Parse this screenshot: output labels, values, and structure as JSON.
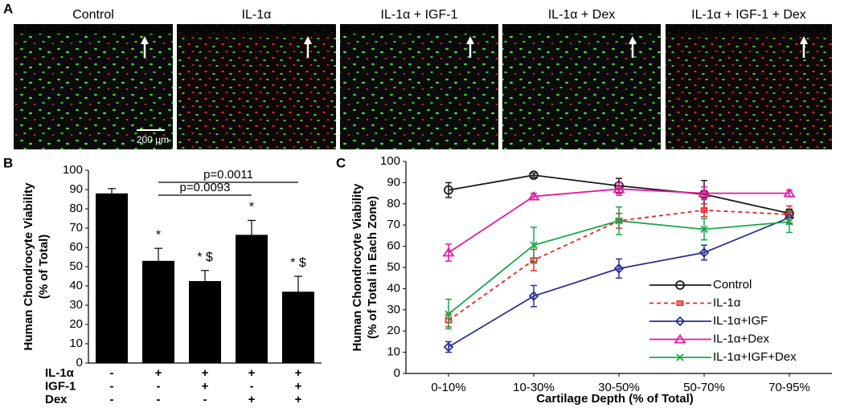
{
  "panel_labels": [
    "A",
    "B",
    "C"
  ],
  "panel_a": {
    "titles": [
      "Control",
      "IL-1α",
      "IL-1α + IGF-1",
      "IL-1α + Dex",
      "IL-1α + IGF-1 + Dex"
    ],
    "scale_bar": "200 μm"
  },
  "chart_data": [
    {
      "type": "bar",
      "ylabel": [
        "Human Chondrocyte Viability",
        "(% of Total)"
      ],
      "values": [
        88,
        53,
        42.5,
        66.5,
        37
      ],
      "errors": [
        2.5,
        6.5,
        5.5,
        7.5,
        8
      ],
      "markers": [
        null,
        "*",
        "* $",
        "*",
        "* $"
      ],
      "color": "#000000",
      "ylim": [
        0,
        100
      ],
      "yticks": [
        0,
        10,
        20,
        30,
        40,
        50,
        60,
        70,
        80,
        90,
        100
      ],
      "comparisons": [
        {
          "label": "p=0.0011",
          "categories": [
            1,
            4
          ]
        },
        {
          "label": "p=0.0093",
          "categories": [
            1,
            3
          ]
        }
      ],
      "treatment_table": [
        {
          "name": "IL-1α",
          "signs": [
            "-",
            "+",
            "+",
            "+",
            "+"
          ]
        },
        {
          "name": "IGF-1",
          "signs": [
            "-",
            "-",
            "+",
            "-",
            "+"
          ]
        },
        {
          "name": "Dex",
          "signs": [
            "-",
            "-",
            "-",
            "+",
            "+"
          ]
        }
      ]
    },
    {
      "type": "line",
      "ylabel": [
        "Human Chondrocyte Viability",
        "(% of Total in Each Zone)"
      ],
      "xlabel": "Cartilage Depth (% of Total)",
      "categories": [
        "0-10%",
        "10-30%",
        "30-50%",
        "50-70%",
        "70-95%"
      ],
      "ylim": [
        0,
        100
      ],
      "yticks": [
        0,
        10,
        20,
        30,
        40,
        50,
        60,
        70,
        80,
        90,
        100
      ],
      "legend": "lower right",
      "series": [
        {
          "name": "Control",
          "color": "#1a1a1a",
          "marker": "circle",
          "line_style": "solid",
          "values": [
            86.5,
            93.5,
            88.5,
            84.5,
            75.5
          ],
          "errors": [
            3.5,
            1,
            3.5,
            6.5,
            2
          ]
        },
        {
          "name": "IL-1α",
          "color": "#e8262a",
          "marker": "square",
          "line_style": "dashed",
          "values": [
            25,
            53.5,
            72,
            77,
            75
          ],
          "errors": [
            3,
            5,
            3.5,
            3,
            4
          ]
        },
        {
          "name": "IL-1α+IGF",
          "color": "#2b2f8f",
          "marker": "diamond",
          "line_style": "solid",
          "values": [
            12.5,
            36.5,
            49.5,
            57,
            73.5
          ],
          "errors": [
            2.5,
            5,
            4.5,
            3.5,
            3
          ]
        },
        {
          "name": "IL-1α+Dex",
          "color": "#e619a0",
          "marker": "triangle",
          "line_style": "solid",
          "values": [
            57,
            83.5,
            87,
            85,
            85
          ],
          "errors": [
            4,
            1.5,
            3,
            3,
            1.5
          ]
        },
        {
          "name": "IL-1α+IGF+Dex",
          "color": "#17a84a",
          "marker": "x",
          "line_style": "solid",
          "values": [
            28,
            60.5,
            72,
            68,
            71.5
          ],
          "errors": [
            7,
            8.5,
            6.5,
            5,
            5
          ]
        }
      ]
    }
  ]
}
